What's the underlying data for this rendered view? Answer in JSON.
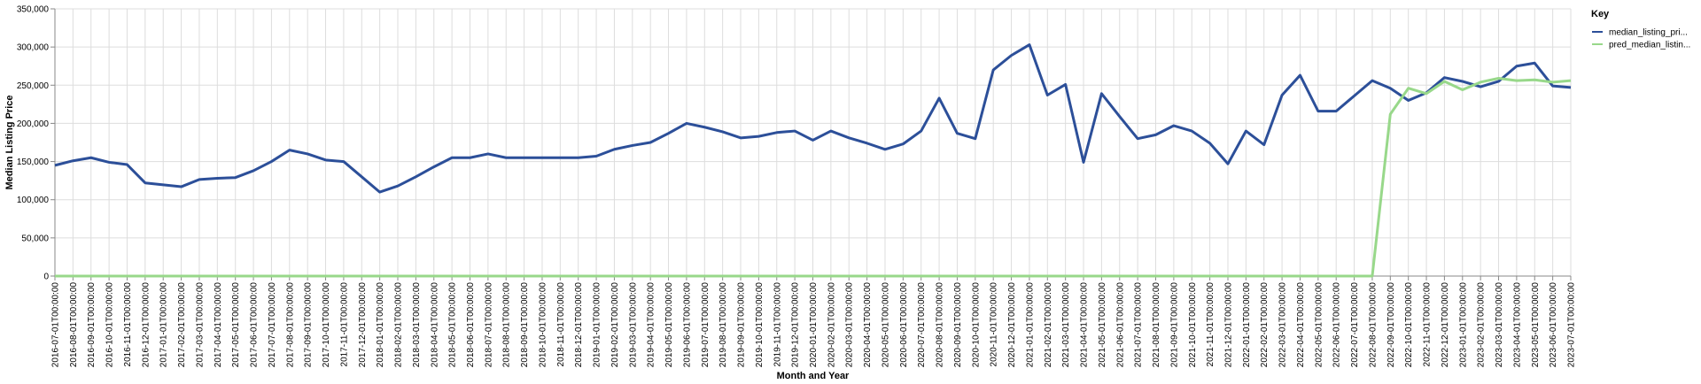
{
  "chart_data": {
    "type": "line",
    "title": "",
    "xlabel": "Month and Year",
    "ylabel": "Median Listing Price",
    "ylim": [
      0,
      350000
    ],
    "yticks": [
      0,
      50000,
      100000,
      150000,
      200000,
      250000,
      300000,
      350000
    ],
    "ytick_labels": [
      "0",
      "50,000",
      "100,000",
      "150,000",
      "200,000",
      "250,000",
      "300,000",
      "350,000"
    ],
    "grid": true,
    "legend": {
      "title": "Key",
      "position": "top-right",
      "entries": [
        "median_listing_pri...",
        "pred_median_listin..."
      ]
    },
    "x": [
      "2016-07-01T00:00:00",
      "2016-08-01T00:00:00",
      "2016-09-01T00:00:00",
      "2016-10-01T00:00:00",
      "2016-11-01T00:00:00",
      "2016-12-01T00:00:00",
      "2017-01-01T00:00:00",
      "2017-02-01T00:00:00",
      "2017-03-01T00:00:00",
      "2017-04-01T00:00:00",
      "2017-05-01T00:00:00",
      "2017-06-01T00:00:00",
      "2017-07-01T00:00:00",
      "2017-08-01T00:00:00",
      "2017-09-01T00:00:00",
      "2017-10-01T00:00:00",
      "2017-11-01T00:00:00",
      "2017-12-01T00:00:00",
      "2018-01-01T00:00:00",
      "2018-02-01T00:00:00",
      "2018-03-01T00:00:00",
      "2018-04-01T00:00:00",
      "2018-05-01T00:00:00",
      "2018-06-01T00:00:00",
      "2018-07-01T00:00:00",
      "2018-08-01T00:00:00",
      "2018-09-01T00:00:00",
      "2018-10-01T00:00:00",
      "2018-11-01T00:00:00",
      "2018-12-01T00:00:00",
      "2019-01-01T00:00:00",
      "2019-02-01T00:00:00",
      "2019-03-01T00:00:00",
      "2019-04-01T00:00:00",
      "2019-05-01T00:00:00",
      "2019-06-01T00:00:00",
      "2019-07-01T00:00:00",
      "2019-08-01T00:00:00",
      "2019-09-01T00:00:00",
      "2019-10-01T00:00:00",
      "2019-11-01T00:00:00",
      "2019-12-01T00:00:00",
      "2020-01-01T00:00:00",
      "2020-02-01T00:00:00",
      "2020-03-01T00:00:00",
      "2020-04-01T00:00:00",
      "2020-05-01T00:00:00",
      "2020-06-01T00:00:00",
      "2020-07-01T00:00:00",
      "2020-08-01T00:00:00",
      "2020-09-01T00:00:00",
      "2020-10-01T00:00:00",
      "2020-11-01T00:00:00",
      "2020-12-01T00:00:00",
      "2021-01-01T00:00:00",
      "2021-02-01T00:00:00",
      "2021-03-01T00:00:00",
      "2021-04-01T00:00:00",
      "2021-05-01T00:00:00",
      "2021-06-01T00:00:00",
      "2021-07-01T00:00:00",
      "2021-08-01T00:00:00",
      "2021-09-01T00:00:00",
      "2021-10-01T00:00:00",
      "2021-11-01T00:00:00",
      "2021-12-01T00:00:00",
      "2022-01-01T00:00:00",
      "2022-02-01T00:00:00",
      "2022-03-01T00:00:00",
      "2022-04-01T00:00:00",
      "2022-05-01T00:00:00",
      "2022-06-01T00:00:00",
      "2022-07-01T00:00:00",
      "2022-08-01T00:00:00",
      "2022-09-01T00:00:00",
      "2022-10-01T00:00:00",
      "2022-11-01T00:00:00",
      "2022-12-01T00:00:00",
      "2023-01-01T00:00:00",
      "2023-02-01T00:00:00",
      "2023-03-01T00:00:00",
      "2023-04-01T00:00:00",
      "2023-05-01T00:00:00",
      "2023-06-01T00:00:00",
      "2023-07-01T00:00:00"
    ],
    "series": [
      {
        "name": "median_listing_pri...",
        "color": "#2c4f99",
        "values": [
          145000,
          151000,
          155000,
          149000,
          146000,
          122000,
          119500,
          117000,
          126500,
          128000,
          129000,
          138000,
          150000,
          165000,
          160000,
          152000,
          150000,
          130000,
          110000,
          118000,
          130000,
          143000,
          155000,
          155000,
          160000,
          155000,
          155000,
          155000,
          155000,
          155000,
          157000,
          166000,
          171000,
          175000,
          187000,
          200000,
          195000,
          189000,
          181000,
          183000,
          188000,
          190000,
          178000,
          190000,
          181000,
          174000,
          166000,
          173000,
          190000,
          233000,
          187000,
          180000,
          270000,
          289000,
          303000,
          237000,
          251000,
          149000,
          239000,
          209000,
          180000,
          185000,
          197000,
          190000,
          174000,
          147000,
          190000,
          172000,
          237000,
          263000,
          216000,
          216000,
          236000,
          256000,
          246000,
          230000,
          240000,
          260000,
          255000,
          248000,
          255000,
          275000,
          279000,
          249000,
          247000
        ]
      },
      {
        "name": "pred_median_listin...",
        "color": "#98d88a",
        "values": [
          0,
          0,
          0,
          0,
          0,
          0,
          0,
          0,
          0,
          0,
          0,
          0,
          0,
          0,
          0,
          0,
          0,
          0,
          0,
          0,
          0,
          0,
          0,
          0,
          0,
          0,
          0,
          0,
          0,
          0,
          0,
          0,
          0,
          0,
          0,
          0,
          0,
          0,
          0,
          0,
          0,
          0,
          0,
          0,
          0,
          0,
          0,
          0,
          0,
          0,
          0,
          0,
          0,
          0,
          0,
          0,
          0,
          0,
          0,
          0,
          0,
          0,
          0,
          0,
          0,
          0,
          0,
          0,
          0,
          0,
          0,
          0,
          0,
          0,
          212000,
          246000,
          239000,
          255000,
          244000,
          254000,
          259000,
          256000,
          257000,
          254000,
          256000
        ]
      }
    ]
  }
}
